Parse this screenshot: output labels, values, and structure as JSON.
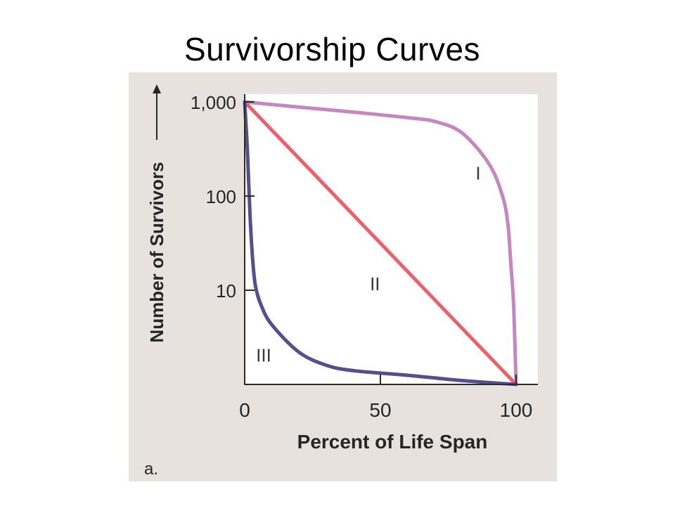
{
  "slide": {
    "title": "Survivorship Curves"
  },
  "chart_data": {
    "type": "line",
    "xlabel": "Percent of Life Span",
    "ylabel": "Number of Survivors",
    "xlim": [
      0,
      100
    ],
    "ylim": [
      1,
      1000
    ],
    "yscale": "log",
    "x_ticks": [
      {
        "value": 0,
        "label": "0"
      },
      {
        "value": 50,
        "label": "50"
      },
      {
        "value": 100,
        "label": "100"
      }
    ],
    "y_ticks": [
      {
        "value": 1000,
        "label": "1,000"
      },
      {
        "value": 100,
        "label": "100"
      },
      {
        "value": 10,
        "label": "10"
      }
    ],
    "grid": false,
    "panel_label": "a.",
    "series": [
      {
        "label": "I",
        "color": "#c587c2",
        "points": [
          [
            0,
            1000
          ],
          [
            20,
            880
          ],
          [
            40,
            780
          ],
          [
            60,
            680
          ],
          [
            70,
            620
          ],
          [
            80,
            470
          ],
          [
            90,
            220
          ],
          [
            95,
            100
          ],
          [
            97,
            50
          ],
          [
            98,
            20
          ],
          [
            99,
            8
          ],
          [
            99.5,
            3
          ],
          [
            100,
            1
          ]
        ]
      },
      {
        "label": "II",
        "color": "#ec5f6b",
        "points": [
          [
            0,
            1000
          ],
          [
            25,
            178
          ],
          [
            50,
            31.6
          ],
          [
            75,
            5.6
          ],
          [
            100,
            1
          ]
        ]
      },
      {
        "label": "III",
        "color": "#564f8e",
        "points": [
          [
            0,
            1000
          ],
          [
            1,
            300
          ],
          [
            2,
            60
          ],
          [
            3,
            20
          ],
          [
            4,
            11
          ],
          [
            6,
            7
          ],
          [
            10,
            4.3
          ],
          [
            20,
            2.2
          ],
          [
            30,
            1.6
          ],
          [
            40,
            1.4
          ],
          [
            60,
            1.25
          ],
          [
            80,
            1.1
          ],
          [
            100,
            1
          ]
        ]
      }
    ]
  }
}
